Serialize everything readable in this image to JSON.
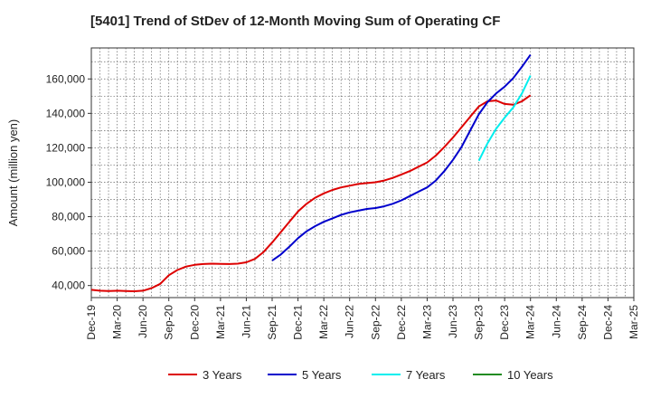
{
  "chart_data": {
    "type": "line",
    "title": "[5401]  Trend of StDev of 12-Month Moving Sum of Operating CF",
    "xlabel": "",
    "ylabel": "Amount (million yen)",
    "ylim": [
      33000,
      178000
    ],
    "yticks": [
      40000,
      60000,
      80000,
      100000,
      120000,
      140000,
      160000
    ],
    "ytick_labels": [
      "40,000",
      "60,000",
      "80,000",
      "100,000",
      "120,000",
      "140,000",
      "160,000"
    ],
    "x_range": [
      "2019-12",
      "2025-03"
    ],
    "xticks": [
      "2019-12",
      "2020-03",
      "2020-06",
      "2020-09",
      "2020-12",
      "2021-03",
      "2021-06",
      "2021-09",
      "2021-12",
      "2022-03",
      "2022-06",
      "2022-09",
      "2022-12",
      "2023-03",
      "2023-06",
      "2023-09",
      "2023-12",
      "2024-03",
      "2024-06",
      "2024-09",
      "2024-12",
      "2025-03"
    ],
    "xtick_labels": [
      "Dec-19",
      "Mar-20",
      "Jun-20",
      "Sep-20",
      "Dec-20",
      "Mar-21",
      "Jun-21",
      "Sep-21",
      "Dec-21",
      "Mar-22",
      "Jun-22",
      "Sep-22",
      "Dec-22",
      "Mar-23",
      "Jun-23",
      "Sep-23",
      "Dec-23",
      "Mar-24",
      "Jun-24",
      "Sep-24",
      "Dec-24",
      "Mar-25"
    ],
    "grid": true,
    "legend_position": "bottom",
    "series": [
      {
        "name": "3 Years",
        "color": "#dd0000",
        "x": [
          "2019-12",
          "2020-01",
          "2020-02",
          "2020-03",
          "2020-04",
          "2020-05",
          "2020-06",
          "2020-07",
          "2020-08",
          "2020-09",
          "2020-10",
          "2020-11",
          "2020-12",
          "2021-01",
          "2021-02",
          "2021-03",
          "2021-04",
          "2021-05",
          "2021-06",
          "2021-07",
          "2021-08",
          "2021-09",
          "2021-10",
          "2021-11",
          "2021-12",
          "2022-01",
          "2022-02",
          "2022-03",
          "2022-04",
          "2022-05",
          "2022-06",
          "2022-07",
          "2022-08",
          "2022-09",
          "2022-10",
          "2022-11",
          "2022-12",
          "2023-01",
          "2023-02",
          "2023-03",
          "2023-04",
          "2023-05",
          "2023-06",
          "2023-07",
          "2023-08",
          "2023-09",
          "2023-10",
          "2023-11",
          "2023-12",
          "2024-01",
          "2024-02",
          "2024-03"
        ],
        "values": [
          37500,
          37000,
          36800,
          37000,
          36800,
          36700,
          37000,
          38500,
          41000,
          46000,
          49000,
          51000,
          52000,
          52500,
          52700,
          52600,
          52500,
          52700,
          53500,
          55500,
          59500,
          65000,
          71000,
          77000,
          83000,
          87500,
          91000,
          93500,
          95500,
          97000,
          98000,
          99000,
          99500,
          100000,
          101000,
          102500,
          104500,
          106500,
          109000,
          111500,
          115500,
          120500,
          126000,
          132000,
          138000,
          144000,
          147000,
          147500,
          145500,
          145000,
          147000,
          150500
        ]
      },
      {
        "name": "5 Years",
        "color": "#0000cc",
        "x": [
          "2021-09",
          "2021-10",
          "2021-11",
          "2021-12",
          "2022-01",
          "2022-02",
          "2022-03",
          "2022-04",
          "2022-05",
          "2022-06",
          "2022-07",
          "2022-08",
          "2022-09",
          "2022-10",
          "2022-11",
          "2022-12",
          "2023-01",
          "2023-02",
          "2023-03",
          "2023-04",
          "2023-05",
          "2023-06",
          "2023-07",
          "2023-08",
          "2023-09",
          "2023-10",
          "2023-11",
          "2023-12",
          "2024-01",
          "2024-02",
          "2024-03"
        ],
        "values": [
          54500,
          58000,
          62500,
          67500,
          71500,
          74500,
          77000,
          79000,
          81000,
          82500,
          83500,
          84500,
          85000,
          86000,
          87500,
          89500,
          92000,
          94500,
          97000,
          101000,
          106500,
          113000,
          120500,
          130000,
          139500,
          146500,
          151500,
          155500,
          160500,
          167000,
          174000
        ]
      },
      {
        "name": "7 Years",
        "color": "#00eeee",
        "x": [
          "2023-09",
          "2023-10",
          "2023-11",
          "2023-12",
          "2024-01",
          "2024-02",
          "2024-03"
        ],
        "values": [
          112500,
          122500,
          131000,
          137500,
          143500,
          151500,
          162000
        ]
      },
      {
        "name": "10 Years",
        "color": "#228b22",
        "x": [],
        "values": []
      }
    ]
  }
}
